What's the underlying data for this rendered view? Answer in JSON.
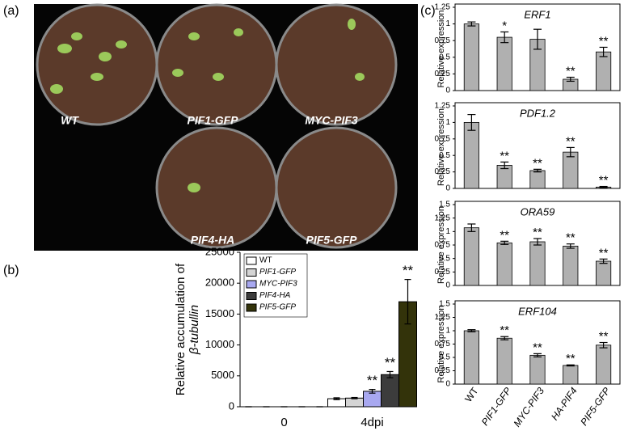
{
  "panels": {
    "a": "(a)",
    "b": "(b)",
    "c": "(c)"
  },
  "photo_labels": [
    "WT",
    "PIF1-GFP",
    "MYC-PIF3",
    "PIF4-HA",
    "PIF5-GFP"
  ],
  "chart_data": [
    {
      "type": "grouped-bar",
      "ylabel": [
        "Relative accumulation of",
        "β-tubullin"
      ],
      "categories": [
        "0",
        "4dpi"
      ],
      "series": [
        {
          "name": "WT",
          "color": "#ffffff",
          "values": [
            0,
            1300
          ],
          "errors": [
            0,
            150
          ],
          "annotations": [
            null,
            null
          ]
        },
        {
          "name": "PIF1-GFP",
          "color": "#d4d4d4",
          "values": [
            0,
            1400
          ],
          "errors": [
            0,
            100
          ],
          "annotations": [
            null,
            null
          ]
        },
        {
          "name": "MYC-PIF3",
          "color": "#a8a8f0",
          "values": [
            0,
            2500
          ],
          "errors": [
            0,
            300
          ],
          "annotations": [
            null,
            "**"
          ]
        },
        {
          "name": "PIF4-HA",
          "color": "#3c3c3c",
          "values": [
            0,
            5200
          ],
          "errors": [
            0,
            500
          ],
          "annotations": [
            null,
            "**"
          ]
        },
        {
          "name": "PIF5-GFP",
          "color": "#33330a",
          "values": [
            0,
            17000
          ],
          "errors": [
            0,
            3600
          ],
          "annotations": [
            null,
            "**"
          ]
        }
      ],
      "ylim": [
        0,
        25000
      ],
      "yticks": [
        0,
        5000,
        10000,
        15000,
        20000,
        25000
      ],
      "legend": "upper left"
    },
    {
      "type": "bar",
      "title": "ERF1",
      "ylabel": "Relative expression",
      "color": "#b0b0b0",
      "values": [
        1.0,
        0.8,
        0.77,
        0.17,
        0.58
      ],
      "errors": [
        0.03,
        0.08,
        0.15,
        0.03,
        0.07
      ],
      "annotations": [
        null,
        "*",
        null,
        "**",
        "**"
      ],
      "ylim": [
        0,
        1.25
      ],
      "yticks": [
        0,
        0.25,
        0.5,
        0.75,
        1,
        1.25
      ]
    },
    {
      "type": "bar",
      "title": "PDF1.2",
      "ylabel": "Relative expression",
      "color": "#b0b0b0",
      "values": [
        1.0,
        0.35,
        0.27,
        0.55,
        0.02
      ],
      "errors": [
        0.12,
        0.05,
        0.02,
        0.07,
        0.01
      ],
      "annotations": [
        null,
        "**",
        "**",
        "**",
        "**"
      ],
      "ylim": [
        0,
        1.25
      ],
      "yticks": [
        0,
        0.25,
        0.5,
        0.75,
        1,
        1.25
      ]
    },
    {
      "type": "bar",
      "title": "ORA59",
      "ylabel": "Relative expression",
      "color": "#b0b0b0",
      "values": [
        1.07,
        0.79,
        0.81,
        0.73,
        0.45
      ],
      "errors": [
        0.07,
        0.03,
        0.06,
        0.04,
        0.04
      ],
      "annotations": [
        null,
        "**",
        "**",
        "**",
        "**"
      ],
      "ylim": [
        0,
        1.5
      ],
      "yticks": [
        0,
        0.25,
        0.5,
        0.75,
        1,
        1.25,
        1.5
      ]
    },
    {
      "type": "bar",
      "title": "ERF104",
      "ylabel": "Relative expression",
      "color": "#b0b0b0",
      "categories": [
        "WT",
        "PIF1-GFP",
        "MYC-PIF3",
        "HA-PIF4",
        "PIF5-GFP"
      ],
      "values": [
        1.0,
        0.86,
        0.54,
        0.35,
        0.73
      ],
      "errors": [
        0.02,
        0.03,
        0.03,
        0.01,
        0.05
      ],
      "annotations": [
        null,
        "**",
        "**",
        "**",
        "**"
      ],
      "ylim": [
        0,
        1.5
      ],
      "yticks": [
        0,
        0.25,
        0.5,
        0.75,
        1,
        1.25,
        1.5
      ]
    }
  ]
}
